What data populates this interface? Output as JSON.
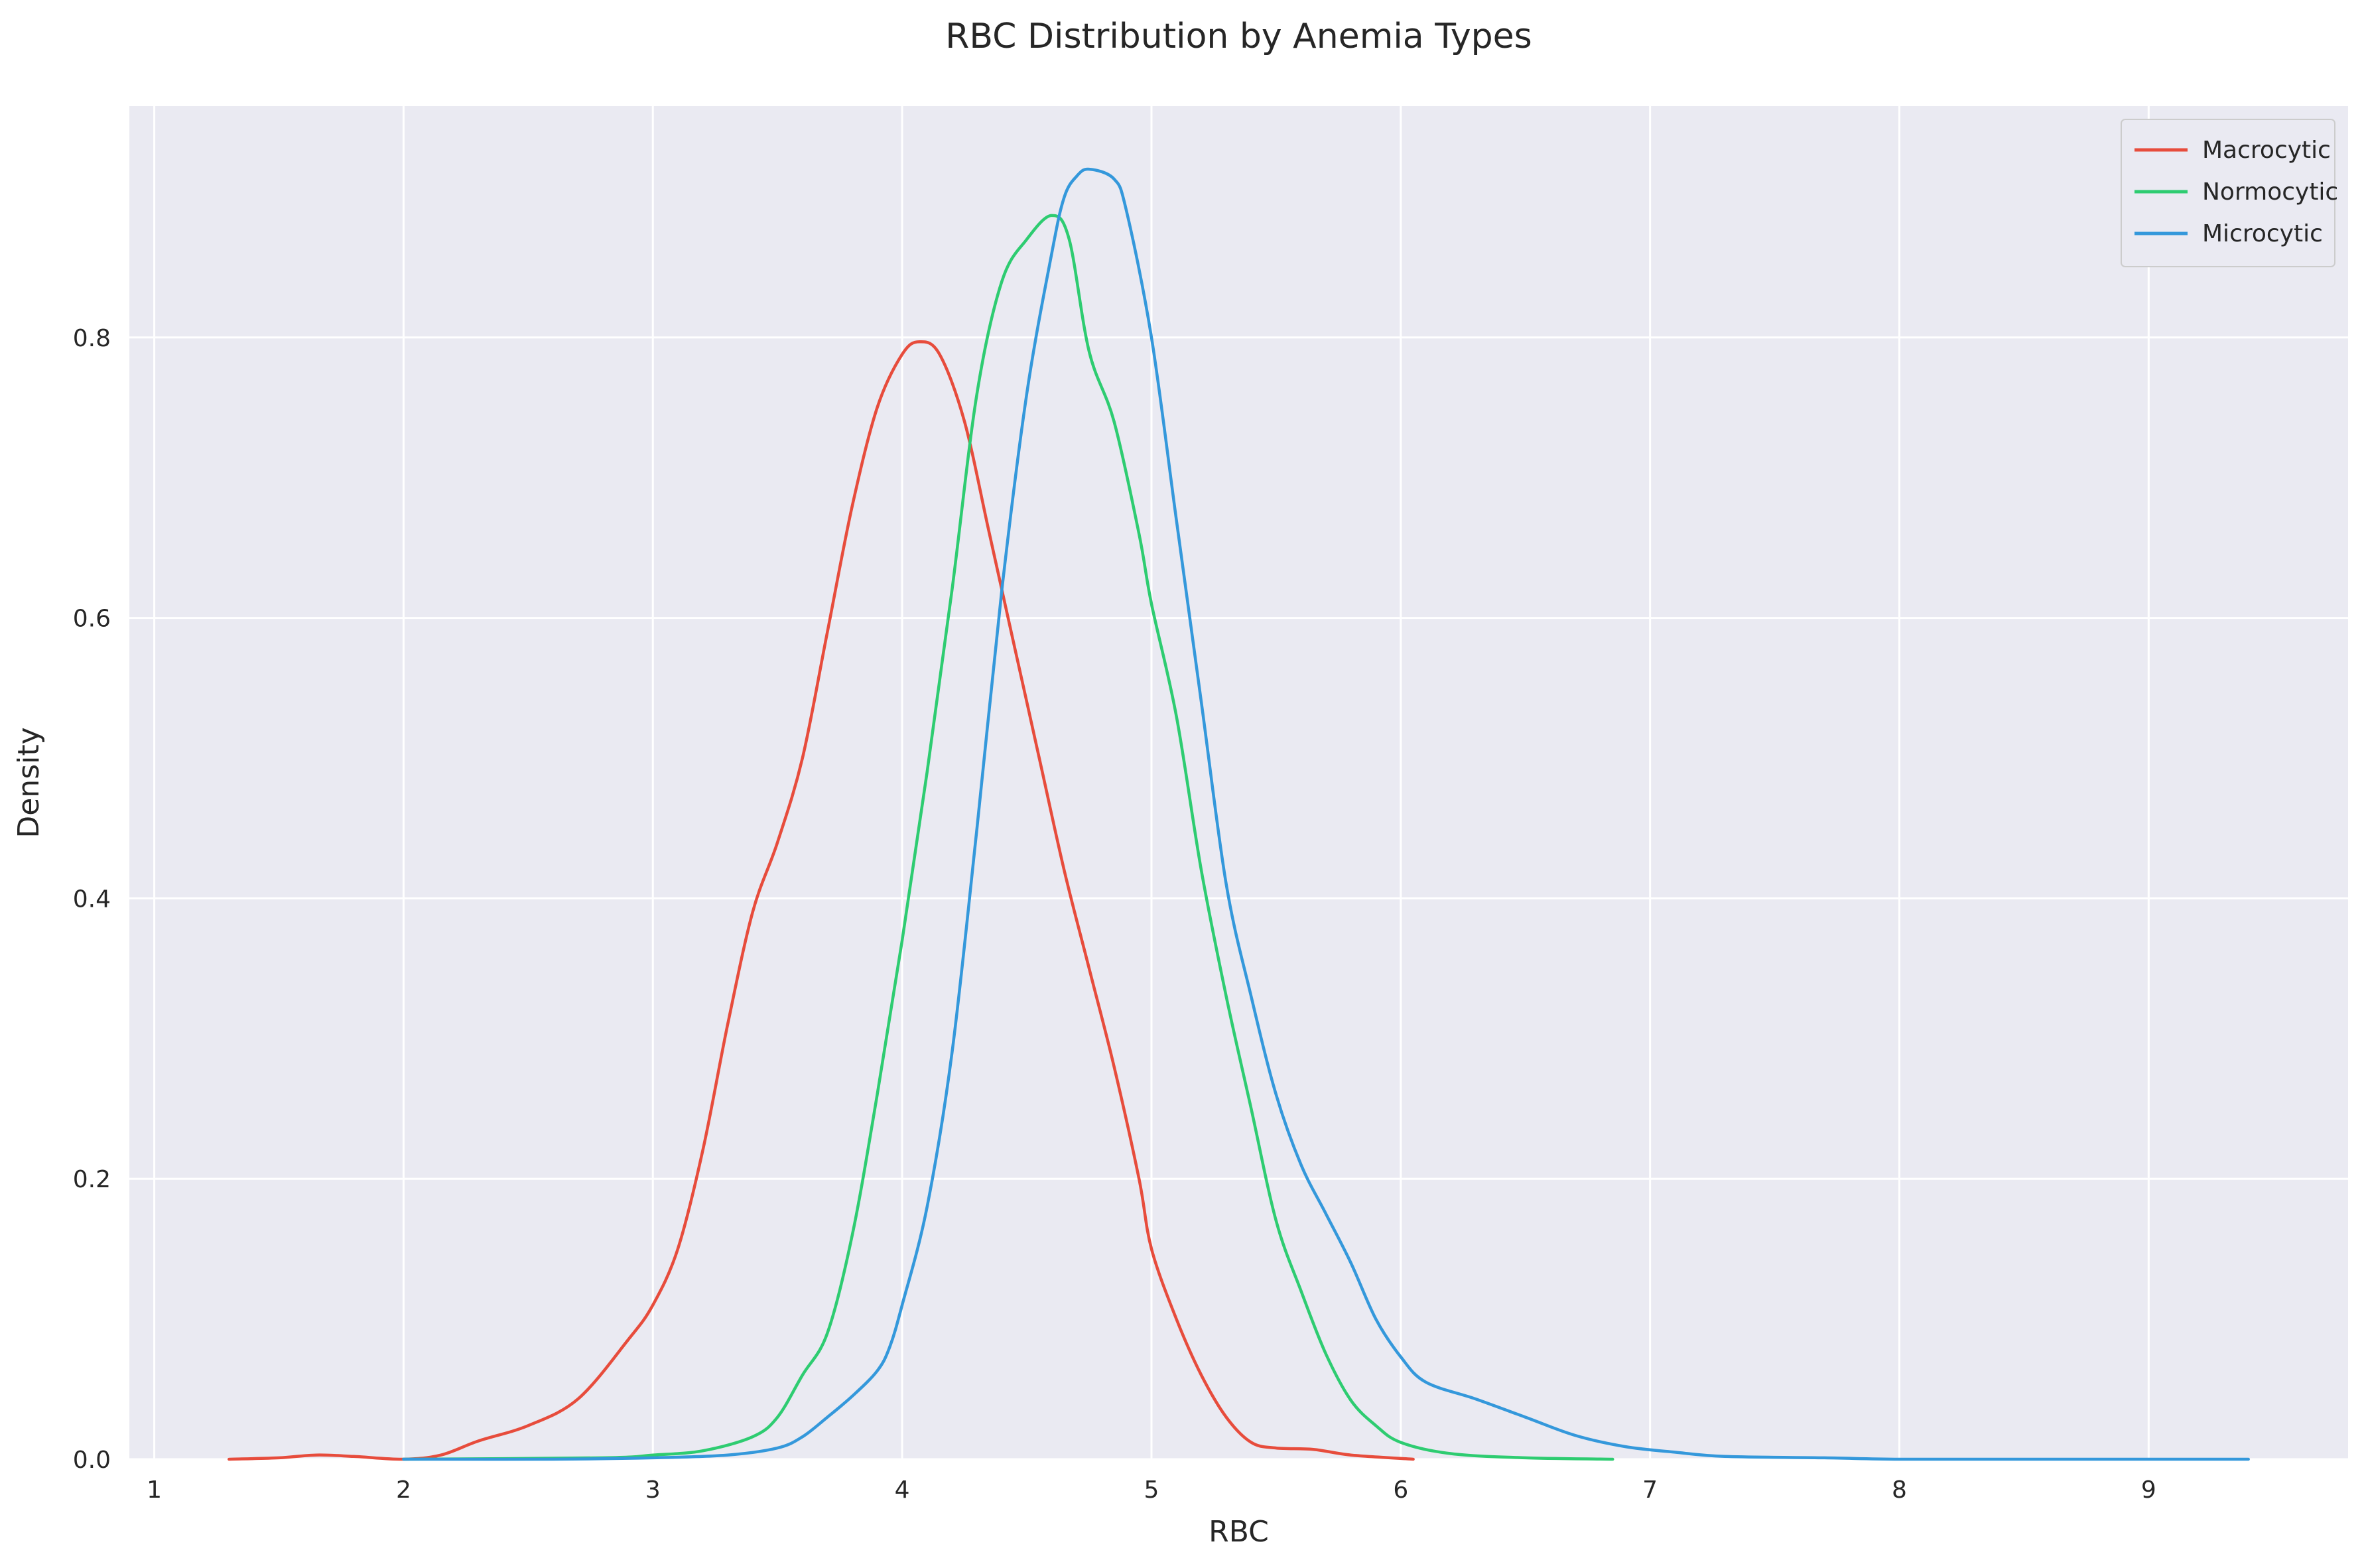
{
  "chart_data": {
    "type": "line",
    "title": "RBC Distribution by Anemia Types",
    "xlabel": "RBC",
    "ylabel": "Density",
    "xlim": [
      0.9,
      9.8
    ],
    "ylim": [
      0,
      0.965
    ],
    "xticks": [
      1,
      2,
      3,
      4,
      5,
      6,
      7,
      8,
      9
    ],
    "yticks": [
      0.0,
      0.2,
      0.4,
      0.6,
      0.8
    ],
    "ytick_labels": [
      "0.0",
      "0.2",
      "0.4",
      "0.6",
      "0.8"
    ],
    "grid": true,
    "legend_position": "top-right",
    "series": [
      {
        "name": "Macrocytic",
        "color": "#e74c3c",
        "points": [
          [
            1.3,
            0.0
          ],
          [
            1.5,
            0.001
          ],
          [
            1.65,
            0.003
          ],
          [
            1.8,
            0.002
          ],
          [
            2.0,
            0.0
          ],
          [
            2.15,
            0.003
          ],
          [
            2.3,
            0.013
          ],
          [
            2.5,
            0.024
          ],
          [
            2.7,
            0.043
          ],
          [
            2.9,
            0.085
          ],
          [
            3.0,
            0.11
          ],
          [
            3.1,
            0.15
          ],
          [
            3.2,
            0.22
          ],
          [
            3.3,
            0.31
          ],
          [
            3.4,
            0.39
          ],
          [
            3.5,
            0.44
          ],
          [
            3.6,
            0.5
          ],
          [
            3.7,
            0.59
          ],
          [
            3.8,
            0.68
          ],
          [
            3.9,
            0.75
          ],
          [
            4.0,
            0.788
          ],
          [
            4.07,
            0.797
          ],
          [
            4.15,
            0.788
          ],
          [
            4.25,
            0.74
          ],
          [
            4.35,
            0.66
          ],
          [
            4.45,
            0.58
          ],
          [
            4.55,
            0.5
          ],
          [
            4.65,
            0.42
          ],
          [
            4.75,
            0.35
          ],
          [
            4.85,
            0.28
          ],
          [
            4.95,
            0.2
          ],
          [
            5.0,
            0.15
          ],
          [
            5.1,
            0.1
          ],
          [
            5.2,
            0.06
          ],
          [
            5.3,
            0.03
          ],
          [
            5.4,
            0.012
          ],
          [
            5.5,
            0.008
          ],
          [
            5.65,
            0.007
          ],
          [
            5.8,
            0.003
          ],
          [
            6.05,
            0.0
          ]
        ]
      },
      {
        "name": "Normocytic",
        "color": "#2ecc71",
        "points": [
          [
            2.0,
            0.0
          ],
          [
            2.8,
            0.001
          ],
          [
            3.0,
            0.003
          ],
          [
            3.2,
            0.006
          ],
          [
            3.4,
            0.016
          ],
          [
            3.5,
            0.03
          ],
          [
            3.6,
            0.06
          ],
          [
            3.7,
            0.09
          ],
          [
            3.8,
            0.16
          ],
          [
            3.9,
            0.26
          ],
          [
            4.0,
            0.37
          ],
          [
            4.1,
            0.49
          ],
          [
            4.2,
            0.62
          ],
          [
            4.3,
            0.76
          ],
          [
            4.4,
            0.84
          ],
          [
            4.5,
            0.87
          ],
          [
            4.6,
            0.887
          ],
          [
            4.67,
            0.87
          ],
          [
            4.75,
            0.79
          ],
          [
            4.85,
            0.74
          ],
          [
            4.95,
            0.66
          ],
          [
            5.0,
            0.61
          ],
          [
            5.1,
            0.53
          ],
          [
            5.2,
            0.42
          ],
          [
            5.3,
            0.33
          ],
          [
            5.4,
            0.25
          ],
          [
            5.5,
            0.17
          ],
          [
            5.6,
            0.12
          ],
          [
            5.7,
            0.075
          ],
          [
            5.8,
            0.042
          ],
          [
            5.9,
            0.024
          ],
          [
            6.0,
            0.012
          ],
          [
            6.2,
            0.004
          ],
          [
            6.5,
            0.001
          ],
          [
            6.85,
            0.0
          ]
        ]
      },
      {
        "name": "Microcytic",
        "color": "#3498db",
        "points": [
          [
            2.0,
            0.0
          ],
          [
            2.6,
            0.0
          ],
          [
            3.0,
            0.001
          ],
          [
            3.3,
            0.003
          ],
          [
            3.5,
            0.008
          ],
          [
            3.6,
            0.016
          ],
          [
            3.7,
            0.03
          ],
          [
            3.8,
            0.045
          ],
          [
            3.9,
            0.063
          ],
          [
            3.95,
            0.08
          ],
          [
            4.0,
            0.11
          ],
          [
            4.1,
            0.18
          ],
          [
            4.2,
            0.29
          ],
          [
            4.3,
            0.45
          ],
          [
            4.4,
            0.62
          ],
          [
            4.5,
            0.76
          ],
          [
            4.6,
            0.86
          ],
          [
            4.65,
            0.9
          ],
          [
            4.7,
            0.915
          ],
          [
            4.75,
            0.92
          ],
          [
            4.85,
            0.913
          ],
          [
            4.9,
            0.89
          ],
          [
            5.0,
            0.8
          ],
          [
            5.1,
            0.67
          ],
          [
            5.2,
            0.54
          ],
          [
            5.3,
            0.41
          ],
          [
            5.4,
            0.33
          ],
          [
            5.5,
            0.26
          ],
          [
            5.6,
            0.21
          ],
          [
            5.7,
            0.175
          ],
          [
            5.8,
            0.14
          ],
          [
            5.9,
            0.1
          ],
          [
            6.0,
            0.073
          ],
          [
            6.1,
            0.055
          ],
          [
            6.3,
            0.043
          ],
          [
            6.5,
            0.03
          ],
          [
            6.7,
            0.017
          ],
          [
            6.9,
            0.009
          ],
          [
            7.1,
            0.005
          ],
          [
            7.3,
            0.002
          ],
          [
            7.7,
            0.001
          ],
          [
            8.0,
            0.0
          ],
          [
            8.5,
            0.0
          ],
          [
            9.4,
            0.0
          ]
        ]
      }
    ]
  }
}
